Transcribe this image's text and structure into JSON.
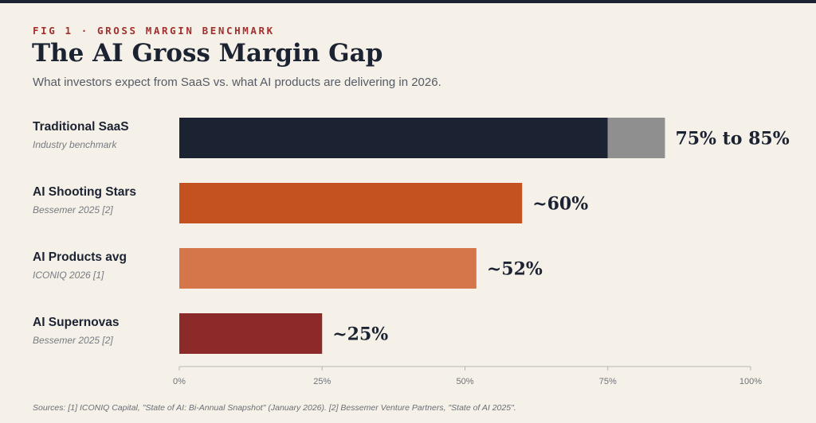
{
  "header": {
    "fig_label": "FIG 1 · GROSS MARGIN BENCHMARK",
    "title": "The AI Gross Margin Gap",
    "subtitle": "What investors expect from SaaS vs. what AI products are delivering in 2026."
  },
  "chart_data": {
    "type": "bar",
    "orientation": "horizontal",
    "title": "The AI Gross Margin Gap",
    "subtitle": "What investors expect from SaaS vs. what AI products are delivering in 2026.",
    "xlim": [
      0,
      100
    ],
    "xticks": [
      0,
      25,
      50,
      75,
      100
    ],
    "xtick_labels": [
      "0%",
      "25%",
      "50%",
      "75%",
      "100%"
    ],
    "grid": false,
    "categories": [
      {
        "name": "Traditional SaaS",
        "source": "Industry benchmark",
        "segments": [
          {
            "start": 0,
            "end": 75,
            "color": "#1b2232"
          },
          {
            "start": 75,
            "end": 85,
            "color": "#8f8f8f"
          }
        ],
        "label": "75% to 85%"
      },
      {
        "name": "AI Shooting Stars",
        "source": "Bessemer 2025 [2]",
        "segments": [
          {
            "start": 0,
            "end": 60,
            "color": "#c45120"
          }
        ],
        "label": "~60%"
      },
      {
        "name": "AI Products avg",
        "source": "ICONIQ 2026 [1]",
        "segments": [
          {
            "start": 0,
            "end": 52,
            "color": "#d4764a"
          }
        ],
        "label": "~52%"
      },
      {
        "name": "AI Supernovas",
        "source": "Bessemer 2025 [2]",
        "segments": [
          {
            "start": 0,
            "end": 25,
            "color": "#8b2a28"
          }
        ],
        "label": "~25%"
      }
    ]
  },
  "footer": {
    "sources": "Sources: [1] ICONIQ Capital, \"State of AI: Bi-Annual Snapshot\" (January 2026). [2] Bessemer Venture Partners, \"State of AI 2025\"."
  }
}
